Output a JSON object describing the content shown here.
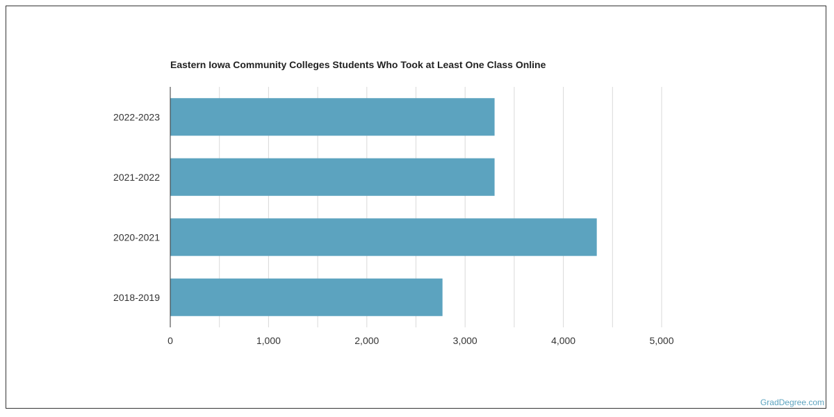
{
  "chart_data": {
    "type": "bar",
    "orientation": "horizontal",
    "title": "Eastern Iowa Community Colleges Students Who Took at Least One Class Online",
    "categories": [
      "2022-2023",
      "2021-2022",
      "2020-2021",
      "2018-2019"
    ],
    "values": [
      3300,
      3300,
      4340,
      2770
    ],
    "xlim": [
      0,
      5000
    ],
    "xticks": [
      0,
      1000,
      2000,
      3000,
      4000,
      5000
    ],
    "xtick_labels": [
      "0",
      "1,000",
      "2,000",
      "3,000",
      "4,000",
      "5,000"
    ],
    "grid": "vertical",
    "bar_color": "#5ca3bf",
    "xlabel": "",
    "ylabel": ""
  },
  "watermark": "GradDegree.com"
}
